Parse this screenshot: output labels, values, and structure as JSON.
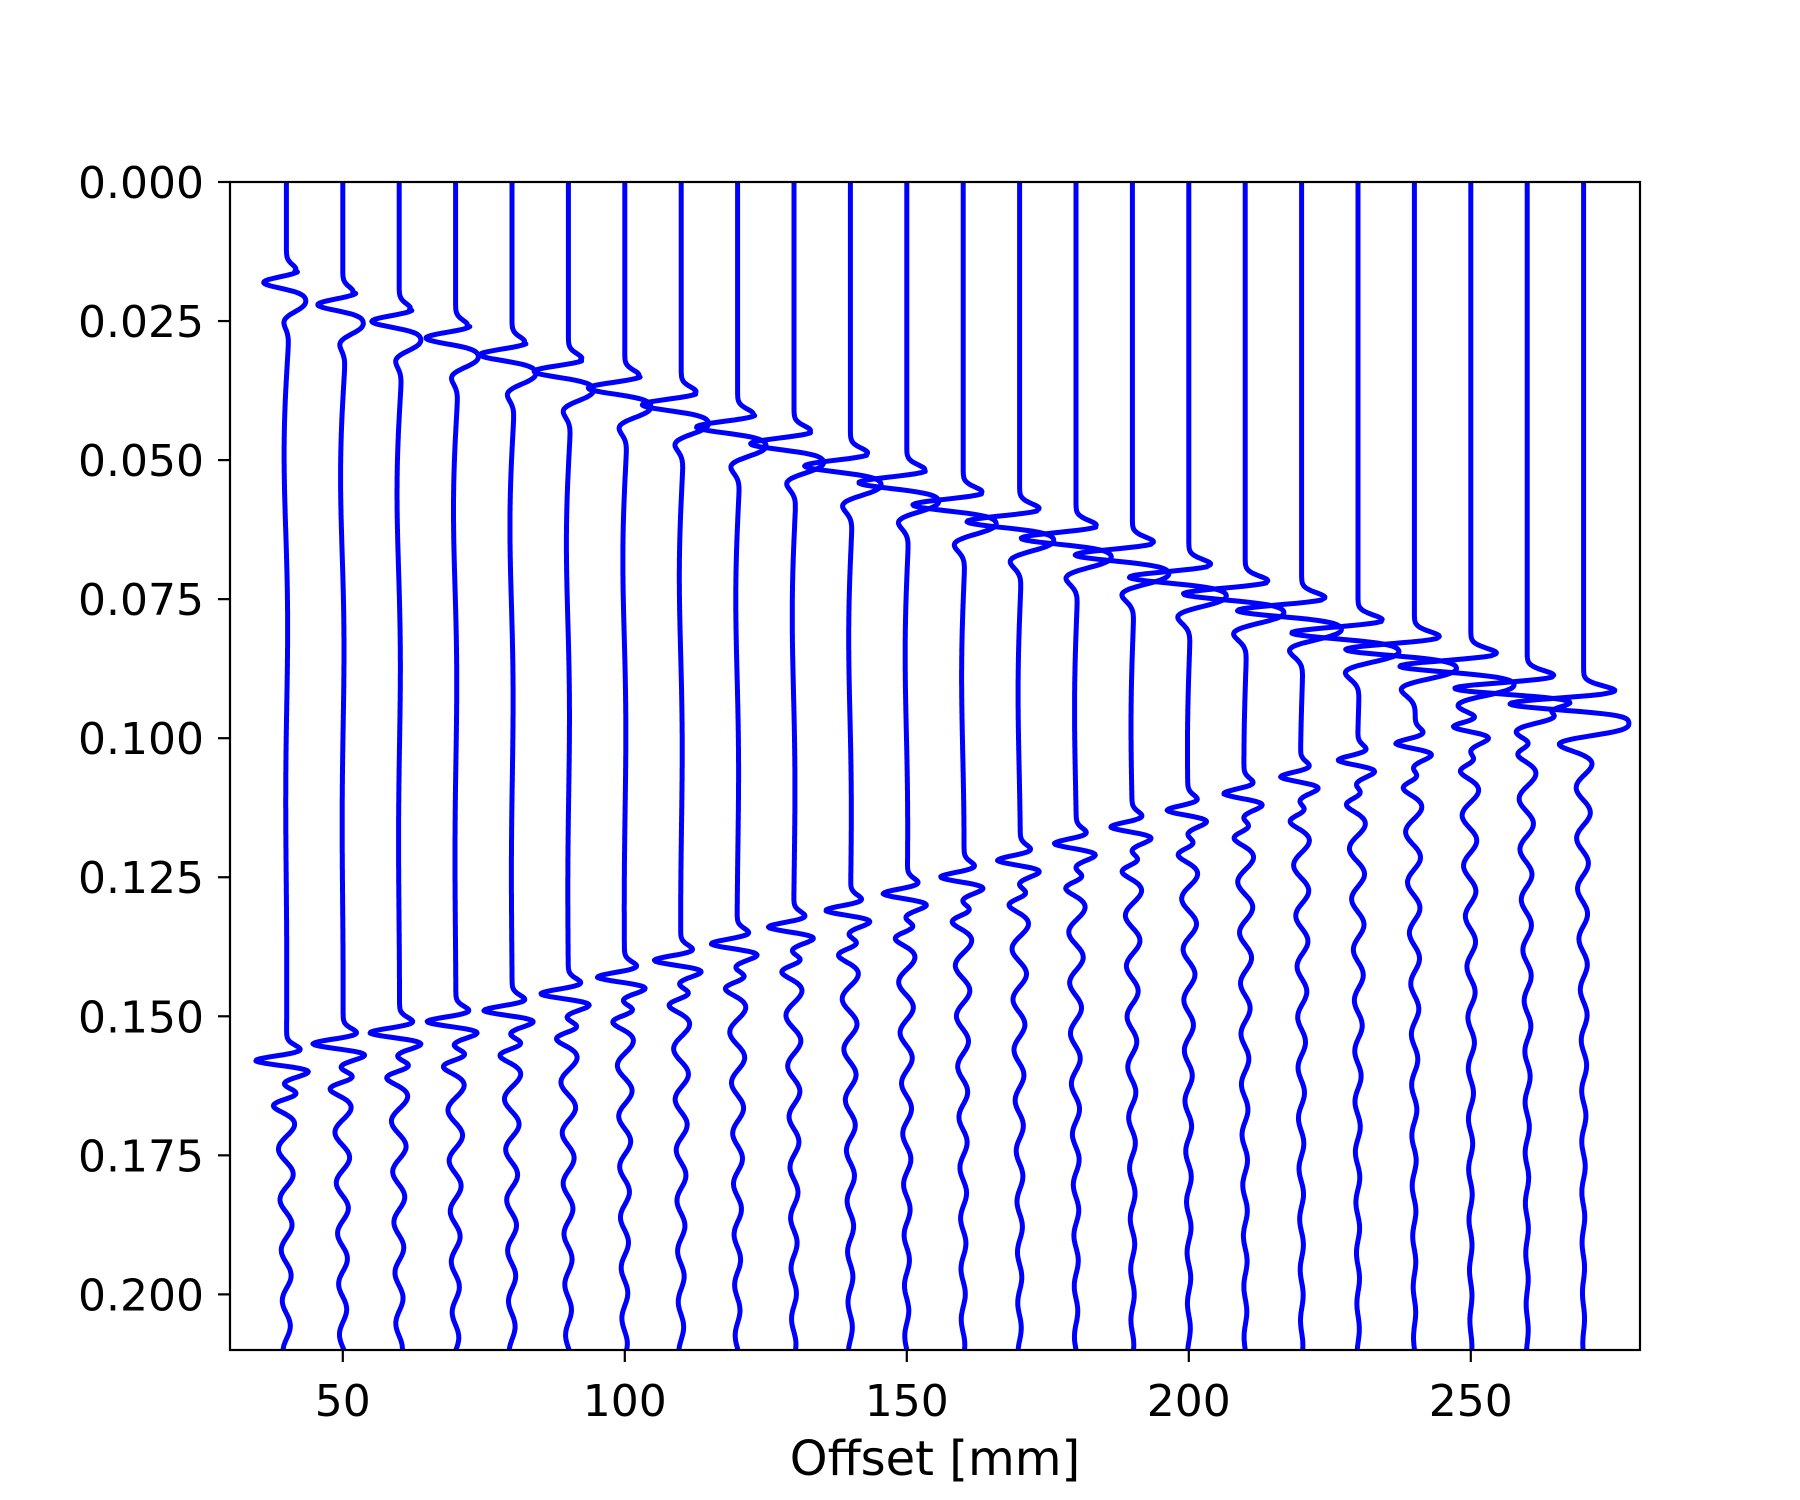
{
  "chart_data": {
    "type": "line",
    "title": "",
    "xlabel": "Offset [mm]",
    "ylabel": "",
    "xlim": [
      30,
      280
    ],
    "ylim": [
      0.21,
      0.0
    ],
    "y_inverted": true,
    "grid": false,
    "xticks": [
      50,
      100,
      150,
      200,
      250
    ],
    "xtick_labels": [
      "50",
      "100",
      "150",
      "200",
      "250"
    ],
    "yticks": [
      0.0,
      0.025,
      0.05,
      0.075,
      0.1,
      0.125,
      0.15,
      0.175,
      0.2
    ],
    "ytick_labels": [
      "0.000",
      "0.025",
      "0.050",
      "0.075",
      "0.100",
      "0.125",
      "0.150",
      "0.175",
      "0.200"
    ],
    "trace_color": "#0000ff",
    "traces": [
      {
        "offset": 40,
        "direct_arrival": 0.016,
        "reflection_arrival": 0.158
      },
      {
        "offset": 50,
        "direct_arrival": 0.02,
        "reflection_arrival": 0.155
      },
      {
        "offset": 60,
        "direct_arrival": 0.023,
        "reflection_arrival": 0.153
      },
      {
        "offset": 70,
        "direct_arrival": 0.026,
        "reflection_arrival": 0.151
      },
      {
        "offset": 80,
        "direct_arrival": 0.029,
        "reflection_arrival": 0.149
      },
      {
        "offset": 90,
        "direct_arrival": 0.032,
        "reflection_arrival": 0.146
      },
      {
        "offset": 100,
        "direct_arrival": 0.035,
        "reflection_arrival": 0.143
      },
      {
        "offset": 110,
        "direct_arrival": 0.038,
        "reflection_arrival": 0.14
      },
      {
        "offset": 120,
        "direct_arrival": 0.042,
        "reflection_arrival": 0.137
      },
      {
        "offset": 130,
        "direct_arrival": 0.045,
        "reflection_arrival": 0.134
      },
      {
        "offset": 140,
        "direct_arrival": 0.049,
        "reflection_arrival": 0.131
      },
      {
        "offset": 150,
        "direct_arrival": 0.052,
        "reflection_arrival": 0.128
      },
      {
        "offset": 160,
        "direct_arrival": 0.056,
        "reflection_arrival": 0.125
      },
      {
        "offset": 170,
        "direct_arrival": 0.059,
        "reflection_arrival": 0.122
      },
      {
        "offset": 180,
        "direct_arrival": 0.062,
        "reflection_arrival": 0.119
      },
      {
        "offset": 190,
        "direct_arrival": 0.065,
        "reflection_arrival": 0.116
      },
      {
        "offset": 200,
        "direct_arrival": 0.069,
        "reflection_arrival": 0.113
      },
      {
        "offset": 210,
        "direct_arrival": 0.072,
        "reflection_arrival": 0.11
      },
      {
        "offset": 220,
        "direct_arrival": 0.075,
        "reflection_arrival": 0.107
      },
      {
        "offset": 230,
        "direct_arrival": 0.079,
        "reflection_arrival": 0.104
      },
      {
        "offset": 240,
        "direct_arrival": 0.082,
        "reflection_arrival": 0.101
      },
      {
        "offset": 250,
        "direct_arrival": 0.085,
        "reflection_arrival": 0.098
      },
      {
        "offset": 260,
        "direct_arrival": 0.089,
        "reflection_arrival": 0.095
      },
      {
        "offset": 270,
        "direct_arrival": 0.092,
        "reflection_arrival": 0.093
      }
    ]
  }
}
